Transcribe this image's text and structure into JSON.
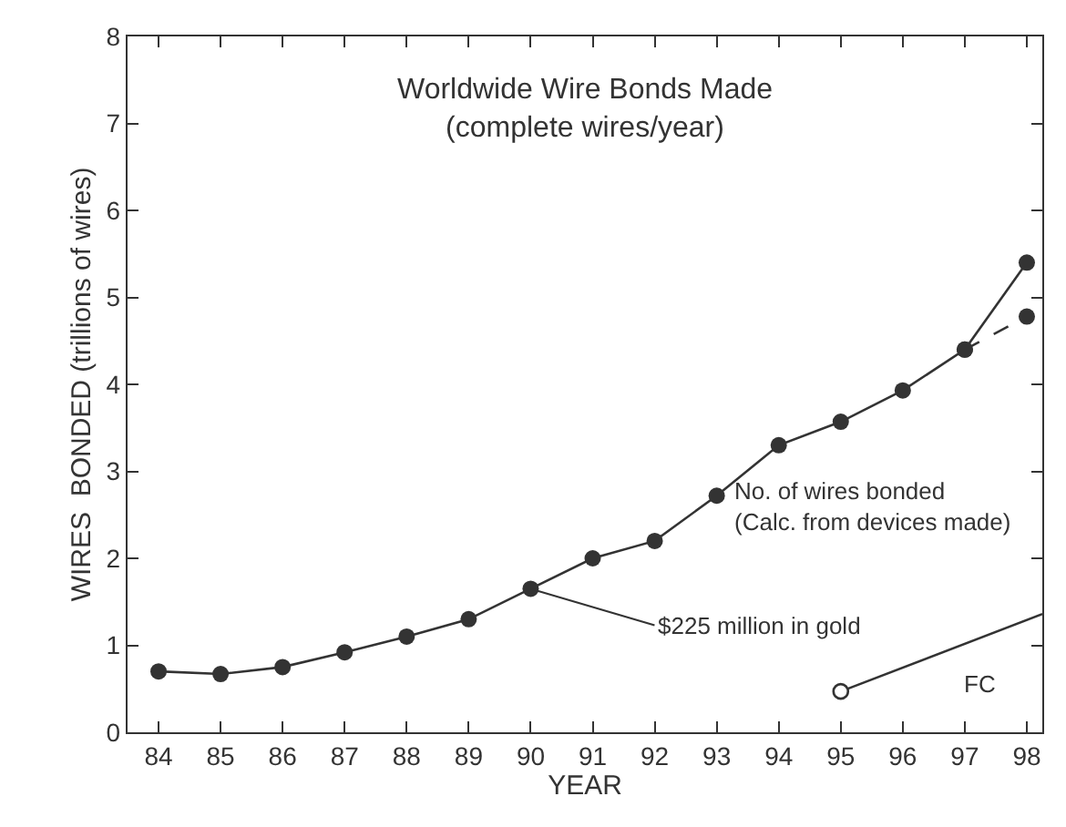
{
  "chart_data": {
    "type": "line",
    "title": "Worldwide Wire Bonds Made",
    "subtitle": "(complete wires/year)",
    "xlabel": "YEAR",
    "ylabel": "WIRES  BONDED (trillions of wires)",
    "x": [
      84,
      85,
      86,
      87,
      88,
      89,
      90,
      91,
      92,
      93,
      94,
      95,
      96,
      97,
      98
    ],
    "series": [
      {
        "name": "No. of wires bonded\n(Calc. from devices made)",
        "color": "#333333",
        "values": [
          0.7,
          0.67,
          0.75,
          0.92,
          1.1,
          1.3,
          1.65,
          2.0,
          2.2,
          2.72,
          3.3,
          3.57,
          3.93,
          4.4,
          5.4
        ],
        "marker": "circle",
        "line_style": "solid"
      },
      {
        "color": "#333333",
        "x": [
          97,
          98
        ],
        "values": [
          4.4,
          4.78
        ],
        "marker": "circle",
        "line_style": "dashed"
      },
      {
        "name": "FC",
        "color": "#333333",
        "x": [
          95,
          98.25
        ],
        "values": [
          0.47,
          1.36
        ],
        "marker": "none",
        "line_style": "solid"
      },
      {
        "type": "scatter",
        "color": "#333333",
        "x": [
          95
        ],
        "values": [
          0.47
        ],
        "marker": "circle"
      }
    ],
    "annotations": [
      {
        "text": "$225 million in gold",
        "x": 90,
        "y": 1.65
      }
    ],
    "xlim": [
      83.5,
      98.25
    ],
    "xticks": [
      84,
      85,
      86,
      87,
      88,
      89,
      90,
      91,
      92,
      93,
      94,
      95,
      96,
      97,
      98
    ],
    "ylim": [
      0,
      8
    ],
    "yticks": [
      0,
      1,
      2,
      3,
      4,
      5,
      6,
      7,
      8
    ]
  }
}
